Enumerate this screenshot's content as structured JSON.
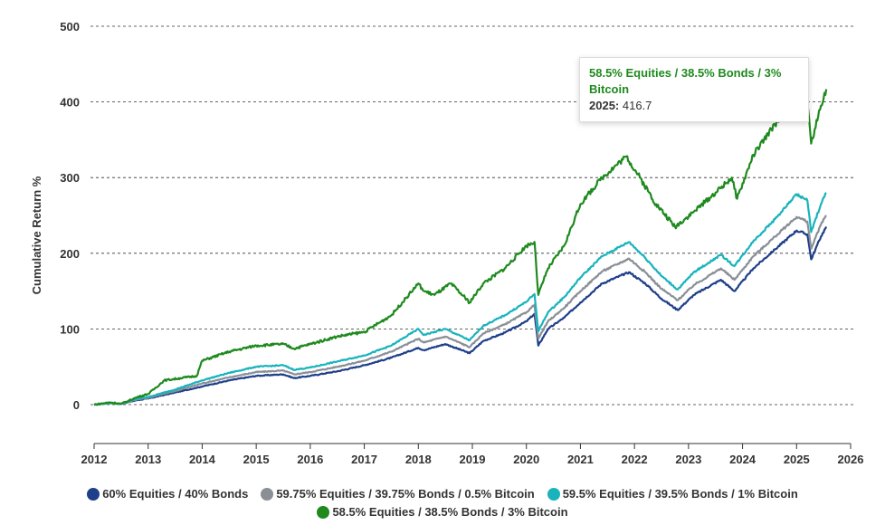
{
  "chart_data": {
    "type": "line",
    "ylabel": "Cumulative Return %",
    "xlabel": "",
    "ylim": [
      -50,
      500
    ],
    "xlim": [
      2012,
      2026
    ],
    "y_ticks": [
      0,
      100,
      200,
      300,
      400,
      500
    ],
    "x_ticks": [
      2012,
      2013,
      2014,
      2015,
      2016,
      2017,
      2018,
      2019,
      2020,
      2021,
      2022,
      2023,
      2024,
      2025,
      2026
    ],
    "grid": "horizontal dashed",
    "legend_position": "bottom",
    "series": [
      {
        "name": "60% Equities / 40% Bonds",
        "color": "#1f3f8a",
        "points": [
          [
            2012,
            0
          ],
          [
            2012.3,
            2
          ],
          [
            2012.5,
            1
          ],
          [
            2012.8,
            6
          ],
          [
            2013,
            8
          ],
          [
            2013.5,
            16
          ],
          [
            2014,
            24
          ],
          [
            2014.5,
            32
          ],
          [
            2015,
            38
          ],
          [
            2015.5,
            40
          ],
          [
            2015.7,
            35
          ],
          [
            2016,
            38
          ],
          [
            2016.5,
            44
          ],
          [
            2017,
            52
          ],
          [
            2017.5,
            62
          ],
          [
            2018,
            75
          ],
          [
            2018.1,
            72
          ],
          [
            2018.5,
            80
          ],
          [
            2018.95,
            68
          ],
          [
            2019.2,
            84
          ],
          [
            2019.6,
            95
          ],
          [
            2020,
            110
          ],
          [
            2020.15,
            120
          ],
          [
            2020.22,
            78
          ],
          [
            2020.4,
            100
          ],
          [
            2020.7,
            115
          ],
          [
            2021,
            135
          ],
          [
            2021.4,
            160
          ],
          [
            2021.9,
            175
          ],
          [
            2022.2,
            160
          ],
          [
            2022.5,
            140
          ],
          [
            2022.8,
            125
          ],
          [
            2023.1,
            145
          ],
          [
            2023.6,
            165
          ],
          [
            2023.85,
            150
          ],
          [
            2024.2,
            180
          ],
          [
            2024.6,
            205
          ],
          [
            2025.0,
            230
          ],
          [
            2025.2,
            225
          ],
          [
            2025.27,
            192
          ],
          [
            2025.45,
            222
          ],
          [
            2025.55,
            235
          ]
        ]
      },
      {
        "name": "59.75% Equities / 39.75% Bonds / 0.5% Bitcoin",
        "color": "#8a8f96",
        "points": [
          [
            2012,
            0
          ],
          [
            2012.3,
            2
          ],
          [
            2012.5,
            1
          ],
          [
            2012.8,
            7
          ],
          [
            2013,
            9
          ],
          [
            2013.5,
            18
          ],
          [
            2014,
            28
          ],
          [
            2014.5,
            36
          ],
          [
            2015,
            43
          ],
          [
            2015.5,
            45
          ],
          [
            2015.7,
            40
          ],
          [
            2016,
            43
          ],
          [
            2016.5,
            50
          ],
          [
            2017,
            58
          ],
          [
            2017.5,
            70
          ],
          [
            2018,
            87
          ],
          [
            2018.1,
            82
          ],
          [
            2018.5,
            90
          ],
          [
            2018.95,
            76
          ],
          [
            2019.2,
            94
          ],
          [
            2019.6,
            106
          ],
          [
            2020,
            122
          ],
          [
            2020.15,
            132
          ],
          [
            2020.22,
            87
          ],
          [
            2020.4,
            110
          ],
          [
            2020.7,
            128
          ],
          [
            2021,
            150
          ],
          [
            2021.4,
            176
          ],
          [
            2021.9,
            193
          ],
          [
            2022.2,
            175
          ],
          [
            2022.5,
            153
          ],
          [
            2022.8,
            138
          ],
          [
            2023.1,
            158
          ],
          [
            2023.6,
            180
          ],
          [
            2023.85,
            165
          ],
          [
            2024.2,
            196
          ],
          [
            2024.6,
            222
          ],
          [
            2025.0,
            248
          ],
          [
            2025.2,
            242
          ],
          [
            2025.27,
            206
          ],
          [
            2025.45,
            238
          ],
          [
            2025.55,
            250
          ]
        ]
      },
      {
        "name": "59.5% Equities / 39.5% Bonds / 1% Bitcoin",
        "color": "#18b3bd",
        "points": [
          [
            2012,
            0
          ],
          [
            2012.3,
            2
          ],
          [
            2012.5,
            1
          ],
          [
            2012.8,
            8
          ],
          [
            2013,
            10
          ],
          [
            2013.5,
            20
          ],
          [
            2014,
            32
          ],
          [
            2014.5,
            42
          ],
          [
            2015,
            50
          ],
          [
            2015.5,
            52
          ],
          [
            2015.7,
            46
          ],
          [
            2016,
            49
          ],
          [
            2016.5,
            57
          ],
          [
            2017,
            65
          ],
          [
            2017.5,
            78
          ],
          [
            2018,
            100
          ],
          [
            2018.1,
            92
          ],
          [
            2018.5,
            100
          ],
          [
            2018.95,
            85
          ],
          [
            2019.2,
            104
          ],
          [
            2019.6,
            118
          ],
          [
            2020,
            136
          ],
          [
            2020.15,
            146
          ],
          [
            2020.22,
            97
          ],
          [
            2020.4,
            122
          ],
          [
            2020.7,
            142
          ],
          [
            2021,
            168
          ],
          [
            2021.4,
            196
          ],
          [
            2021.9,
            215
          ],
          [
            2022.2,
            194
          ],
          [
            2022.5,
            170
          ],
          [
            2022.8,
            152
          ],
          [
            2023.1,
            175
          ],
          [
            2023.6,
            198
          ],
          [
            2023.85,
            183
          ],
          [
            2024.2,
            216
          ],
          [
            2024.6,
            245
          ],
          [
            2025.0,
            278
          ],
          [
            2025.2,
            270
          ],
          [
            2025.27,
            228
          ],
          [
            2025.45,
            265
          ],
          [
            2025.55,
            280
          ]
        ]
      },
      {
        "name": "58.5% Equities / 38.5% Bonds / 3% Bitcoin",
        "color": "#1e8a1e",
        "points": [
          [
            2012,
            0
          ],
          [
            2012.3,
            3
          ],
          [
            2012.5,
            1
          ],
          [
            2012.8,
            10
          ],
          [
            2013,
            14
          ],
          [
            2013.3,
            32
          ],
          [
            2013.6,
            35
          ],
          [
            2013.9,
            38
          ],
          [
            2014,
            58
          ],
          [
            2014.5,
            70
          ],
          [
            2015,
            78
          ],
          [
            2015.5,
            80
          ],
          [
            2015.7,
            74
          ],
          [
            2016,
            80
          ],
          [
            2016.5,
            90
          ],
          [
            2017,
            96
          ],
          [
            2017.5,
            118
          ],
          [
            2018,
            160
          ],
          [
            2018.1,
            150
          ],
          [
            2018.3,
            145
          ],
          [
            2018.6,
            160
          ],
          [
            2018.95,
            135
          ],
          [
            2019.2,
            160
          ],
          [
            2019.6,
            180
          ],
          [
            2020,
            210
          ],
          [
            2020.15,
            215
          ],
          [
            2020.22,
            145
          ],
          [
            2020.4,
            180
          ],
          [
            2020.7,
            210
          ],
          [
            2021,
            265
          ],
          [
            2021.4,
            300
          ],
          [
            2021.85,
            328
          ],
          [
            2022.1,
            300
          ],
          [
            2022.4,
            265
          ],
          [
            2022.75,
            235
          ],
          [
            2023.1,
            255
          ],
          [
            2023.5,
            280
          ],
          [
            2023.8,
            300
          ],
          [
            2023.9,
            272
          ],
          [
            2024.2,
            330
          ],
          [
            2024.6,
            370
          ],
          [
            2024.95,
            410
          ],
          [
            2025.2,
            400
          ],
          [
            2025.27,
            345
          ],
          [
            2025.45,
            395
          ],
          [
            2025.55,
            416.7
          ]
        ]
      }
    ],
    "tooltip": {
      "series_name": "58.5% Equities / 38.5% Bonds / 3% Bitcoin",
      "year": "2025:",
      "value": "416.7"
    }
  },
  "legend": {
    "row1": [
      {
        "label": "60% Equities / 40% Bonds",
        "color": "#1f3f8a"
      },
      {
        "label": "59.75% Equities / 39.75% Bonds / 0.5% Bitcoin",
        "color": "#8a8f96"
      },
      {
        "label": "59.5% Equities / 39.5% Bonds / 1% Bitcoin",
        "color": "#18b3bd"
      }
    ],
    "row2": [
      {
        "label": "58.5% Equities / 38.5% Bonds / 3% Bitcoin",
        "color": "#1e8a1e"
      }
    ]
  }
}
